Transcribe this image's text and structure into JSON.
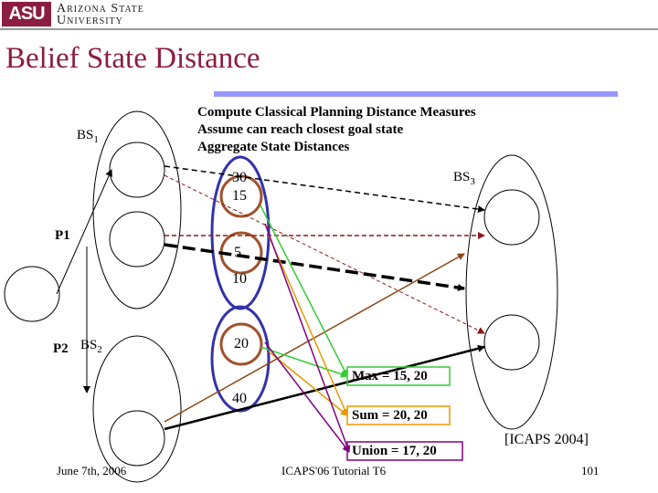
{
  "header": {
    "logo_mark": "ASU",
    "logo_line1": "Arizona State",
    "logo_line2": "University"
  },
  "slide": {
    "title": "Belief State Distance",
    "bullets": [
      "Compute Classical Planning Distance Measures",
      "Assume can reach closest goal state",
      "Aggregate State Distances"
    ]
  },
  "diagram": {
    "bs1": "BS",
    "bs1_sub": "1",
    "bs2": "BS",
    "bs2_sub": "2",
    "bs3": "BS",
    "bs3_sub": "3",
    "p1": "P1",
    "p2": "P2",
    "distances": {
      "d30": "30",
      "d15": "15",
      "d5": "5",
      "d10": "10",
      "d20": "20",
      "d40": "40"
    },
    "results": {
      "max": "Max = 15, 20",
      "sum": "Sum = 20, 20",
      "union": "Union = 17, 20"
    },
    "colors": {
      "bs1_circle": "#3333aa",
      "bs2_circle": "#3333aa",
      "min_circles": "#a0522d",
      "max_arrow": "#33cc33",
      "sum_arrow": "#e69900",
      "union_arrow": "#800080",
      "bs1_arrows": "#8b1a1a",
      "bs2_arrows": "#8b4513"
    }
  },
  "footer": {
    "date": "June 7th, 2006",
    "event": "ICAPS'06 Tutorial T6",
    "citation": "[ICAPS 2004]",
    "page": "101"
  }
}
